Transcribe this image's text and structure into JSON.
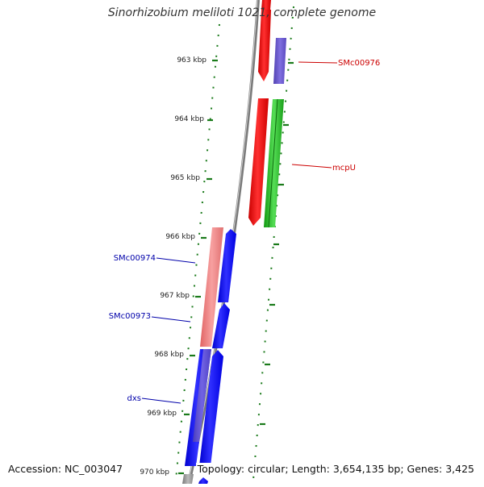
{
  "title": "Sinorhizobium meliloti 1021, complete genome",
  "footer": {
    "accession": "Accession: NC_003047",
    "summary": "Topology: circular; Length: 3,654,135 bp; Genes: 3,425"
  },
  "ticks": [
    {
      "label": "963 kbp"
    },
    {
      "label": "964 kbp"
    },
    {
      "label": "965 kbp"
    },
    {
      "label": "966 kbp"
    },
    {
      "label": "967 kbp"
    },
    {
      "label": "968 kbp"
    },
    {
      "label": "969 kbp"
    },
    {
      "label": "970 kbp"
    }
  ],
  "genes": [
    {
      "label": "SMc00976",
      "color": "#cc0000"
    },
    {
      "label": "mcpU",
      "color": "#cc0000"
    },
    {
      "label": "SMc00974",
      "color": "#0000aa"
    },
    {
      "label": "SMc00973",
      "color": "#0000aa"
    },
    {
      "label": "dxs",
      "color": "#0000aa"
    }
  ],
  "colors": {
    "forward_cds": "#ff0000",
    "forward_light": "#f08080",
    "reverse_cds": "#0000ff",
    "reverse_purple": "#6a5acd",
    "rna_green": "#22aa22",
    "backbone": "#888888",
    "tick_green": "#1a7a1a"
  }
}
